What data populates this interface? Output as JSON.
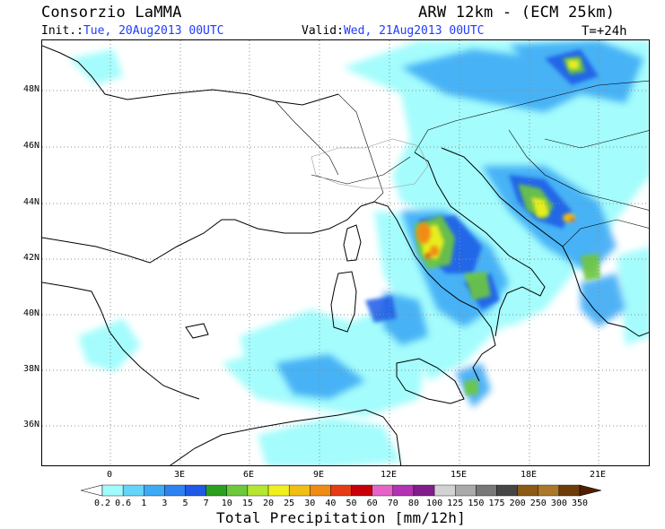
{
  "header": {
    "source": "Consorzio LaMMA",
    "model": "ARW 12km - (ECM 25km)",
    "init_label": "Init.:",
    "init_value": "Tue, 20Aug2013 00UTC",
    "valid_label": "Valid:",
    "valid_value": "Wed, 21Aug2013 00UTC",
    "lead_time": "T=+24h"
  },
  "map": {
    "lat_labels": [
      "48N",
      "46N",
      "44N",
      "42N",
      "40N",
      "38N",
      "36N"
    ],
    "lon_labels": [
      "0",
      "3E",
      "6E",
      "9E",
      "12E",
      "15E",
      "18E",
      "21E"
    ],
    "grid": "dotted"
  },
  "colorbar": {
    "title": "Total Precipitation [mm/12h]",
    "levels": [
      "0.2",
      "0.6",
      "1",
      "3",
      "5",
      "7",
      "10",
      "15",
      "20",
      "25",
      "30",
      "40",
      "50",
      "60",
      "70",
      "80",
      "100",
      "125",
      "150",
      "175",
      "200",
      "250",
      "300",
      "350"
    ],
    "colors": [
      "#ffffff",
      "#a0fcfc",
      "#64d4fa",
      "#3caaf5",
      "#2d82f0",
      "#1e5ae6",
      "#2aa01e",
      "#6ec83c",
      "#b4e632",
      "#f0f01e",
      "#f0be14",
      "#f08c14",
      "#e63c14",
      "#c8000a",
      "#e664c8",
      "#b432b4",
      "#821e8c",
      "#d2d2d2",
      "#aaaaaa",
      "#787878",
      "#464646",
      "#8c5a14",
      "#aa7828",
      "#6e3c0a",
      "#501e00"
    ]
  },
  "legend_colors": {
    "sea": "#ffffff",
    "coast": "#000000",
    "grid": "#8c8c8c"
  }
}
